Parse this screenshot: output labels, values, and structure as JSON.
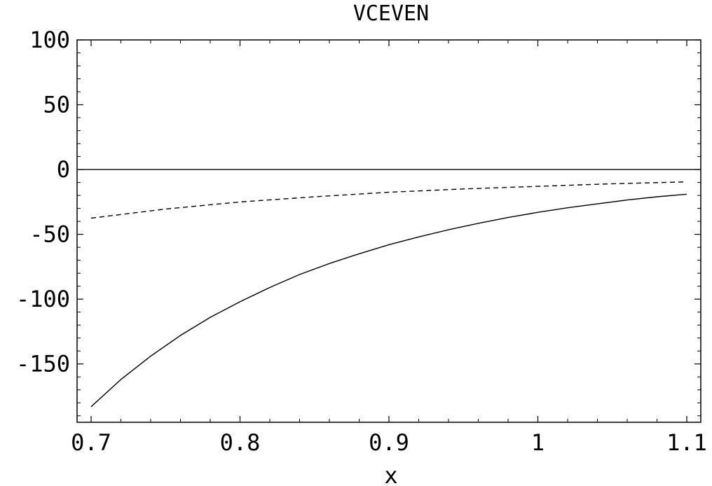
{
  "chart_data": {
    "type": "line",
    "title": "VCEVEN",
    "xlabel": "x",
    "ylabel": "",
    "xlim": [
      0.7,
      1.1
    ],
    "ylim": [
      -195,
      100
    ],
    "x_ticks": [
      0.7,
      0.8,
      0.9,
      1.0,
      1.1
    ],
    "x_tick_labels": [
      "0.7",
      "0.8",
      "0.9",
      "1",
      "1.1"
    ],
    "y_ticks": [
      100,
      50,
      0,
      -50,
      -100,
      -150
    ],
    "y_tick_labels": [
      "100",
      "50",
      "0",
      "-50",
      "-100",
      "-150"
    ],
    "grid": false,
    "frame_ticks": true,
    "zero_line": 0,
    "series": [
      {
        "style": "solid",
        "x": [
          0.7,
          0.72,
          0.74,
          0.76,
          0.78,
          0.8,
          0.82,
          0.84,
          0.86,
          0.88,
          0.9,
          0.92,
          0.94,
          0.96,
          0.98,
          1.0,
          1.02,
          1.04,
          1.06,
          1.08,
          1.1
        ],
        "y": [
          -183,
          -162,
          -144,
          -128,
          -114,
          -102,
          -91,
          -81,
          -72.5,
          -65,
          -58,
          -52,
          -46.5,
          -41.5,
          -37,
          -33,
          -29.5,
          -26.5,
          -23.5,
          -21,
          -19
        ]
      },
      {
        "style": "dashed",
        "x": [
          0.7,
          0.75,
          0.8,
          0.85,
          0.9,
          0.95,
          1.0,
          1.05,
          1.1
        ],
        "y": [
          -37.5,
          -30.5,
          -25,
          -21,
          -17.5,
          -15,
          -13,
          -11,
          -9.5
        ]
      }
    ]
  }
}
